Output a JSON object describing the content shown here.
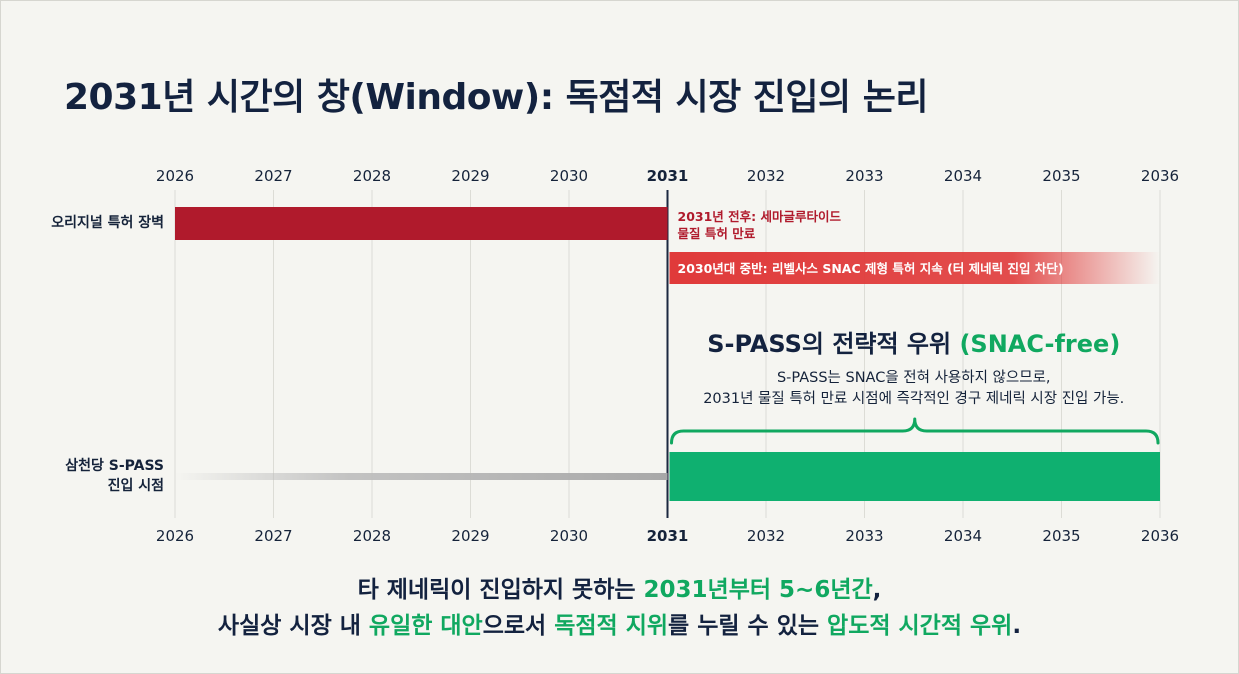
{
  "title": "2031년 시간의 창(Window): 독점적 시장 진입의 논리",
  "colors": {
    "patent_red": "#b01a2c",
    "snac_red": "#e03a3a",
    "spass_green": "#0fb070",
    "accent_green": "#10a860",
    "navy": "#13223f"
  },
  "chart_data": {
    "type": "timeline",
    "x_axis": {
      "range": [
        2026,
        2036
      ],
      "ticks": [
        "2026",
        "2027",
        "2028",
        "2029",
        "2030",
        "2031",
        "2032",
        "2033",
        "2034",
        "2035",
        "2036"
      ],
      "highlight_tick": "2031",
      "position": "top and bottom"
    },
    "grid": true,
    "marker_year": 2031,
    "rows": [
      {
        "label": "오리지널 특허 장벽",
        "bars": [
          {
            "start": 2026,
            "end": 2031,
            "color": "#b01a2c",
            "style": "solid"
          },
          {
            "start": 2031,
            "end": 2036,
            "color": "#e03a3a",
            "style": "fade-out",
            "text": "2030년대 중반: 리벨사스 SNAC 제형 특허 지속 (터 제네릭 진입 차단)"
          }
        ],
        "annotation": [
          "2031년 전후: 세마글루타이드",
          "물질 특허 만료"
        ]
      },
      {
        "label": "삼천당 S-PASS 진입 시점",
        "label_lines": [
          "삼천당 S-PASS",
          "진입 시점"
        ],
        "bars": [
          {
            "start": 2026,
            "end": 2031,
            "color": "#bdbdbd",
            "style": "fade-in"
          },
          {
            "start": 2031,
            "end": 2036,
            "color": "#0fb070",
            "style": "solid"
          }
        ]
      }
    ],
    "callout": {
      "title_main": "S-PASS의 전략적 우위 ",
      "title_highlight": "(SNAC-free)",
      "lines": [
        "S-PASS는 SNAC을 전혀 사용하지 않으므로,",
        "2031년 물질 특허 만료 시점에 즉각적인 경구 제네릭 시장 진입 가능."
      ],
      "brace_range": [
        2031,
        2036
      ]
    }
  },
  "footer": {
    "line1": [
      {
        "text": "타 제네릭이 진입하지 못하는 ",
        "hl": false
      },
      {
        "text": "2031년부터 5~6년간",
        "hl": true
      },
      {
        "text": ",",
        "hl": false
      }
    ],
    "line2": [
      {
        "text": "사실상 시장 내 ",
        "hl": false
      },
      {
        "text": "유일한 대안",
        "hl": true
      },
      {
        "text": "으로서 ",
        "hl": false
      },
      {
        "text": "독점적 지위",
        "hl": true
      },
      {
        "text": "를 누릴 수 있는 ",
        "hl": false
      },
      {
        "text": "압도적 시간적 우위",
        "hl": true
      },
      {
        "text": ".",
        "hl": false
      }
    ]
  }
}
